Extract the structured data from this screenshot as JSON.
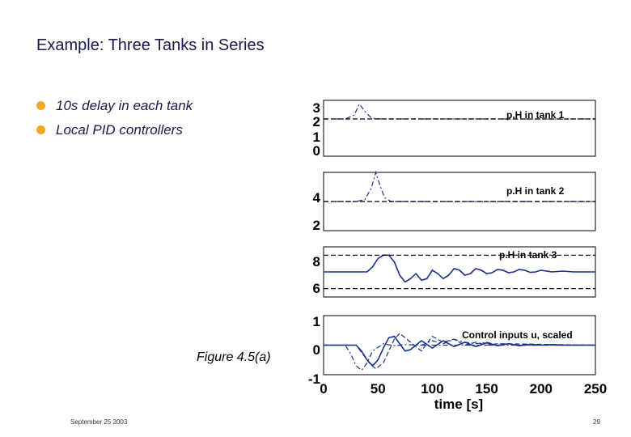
{
  "slide": {
    "title": "Example: Three Tanks in Series",
    "bullets": [
      "10s delay in each tank",
      "Local PID  controllers"
    ],
    "figure_caption": "Figure 4.5(a)",
    "footer_date": "September 25 2003",
    "page_number": "29"
  },
  "colors": {
    "title_text": "#1a1a4a",
    "bullet_icon": "#f5a623",
    "series_solid": "#1a2f8a",
    "series_dashdot": "#1a2f8a",
    "reference_dashed": "#000000"
  },
  "chart_data": [
    {
      "type": "line",
      "title": "p.H in tank 1",
      "ylim": [
        0,
        3
      ],
      "yticks": [
        "3",
        "2",
        "1",
        "0"
      ],
      "xlim": [
        0,
        250
      ],
      "series": [
        {
          "style": "dash-dot",
          "x": [
            0,
            20,
            28,
            33,
            38,
            44,
            52,
            70,
            250
          ],
          "y": [
            2.0,
            2.0,
            2.2,
            2.8,
            2.4,
            2.05,
            2.0,
            2.0,
            2.0
          ]
        },
        {
          "style": "dashed",
          "x": [
            0,
            250
          ],
          "y": [
            2.0,
            2.0
          ]
        }
      ]
    },
    {
      "type": "line",
      "title": "p.H in tank 2",
      "ylim": [
        2,
        5
      ],
      "yticks": [
        "4",
        "2"
      ],
      "xlim": [
        0,
        250
      ],
      "series": [
        {
          "style": "dash-dot",
          "x": [
            0,
            30,
            38,
            44,
            48,
            52,
            56,
            62,
            75,
            250
          ],
          "y": [
            3.5,
            3.5,
            3.6,
            4.2,
            5.0,
            4.3,
            3.7,
            3.5,
            3.5,
            3.5
          ]
        },
        {
          "style": "dashed",
          "x": [
            0,
            250
          ],
          "y": [
            3.5,
            3.5
          ]
        }
      ]
    },
    {
      "type": "line",
      "title": "p.H in tank 3",
      "ylim": [
        5.5,
        8.5
      ],
      "yticks": [
        "8",
        "6"
      ],
      "xlim": [
        0,
        250
      ],
      "series": [
        {
          "style": "solid",
          "x": [
            0,
            40,
            45,
            50,
            55,
            60,
            65,
            70,
            75,
            80,
            85,
            90,
            95,
            100,
            105,
            110,
            115,
            120,
            125,
            130,
            135,
            140,
            145,
            150,
            155,
            160,
            165,
            170,
            175,
            180,
            185,
            190,
            195,
            200,
            210,
            220,
            230,
            250
          ],
          "y": [
            7.0,
            7.0,
            7.3,
            7.8,
            8.0,
            8.0,
            7.6,
            6.8,
            6.4,
            6.6,
            6.9,
            6.5,
            6.6,
            7.1,
            6.9,
            6.6,
            6.8,
            7.2,
            7.1,
            6.8,
            6.9,
            7.2,
            7.1,
            6.9,
            6.95,
            7.15,
            7.1,
            6.95,
            7.0,
            7.15,
            7.1,
            6.97,
            7.0,
            7.1,
            7.0,
            7.05,
            7.0,
            7.0
          ]
        },
        {
          "style": "dashed",
          "x": [
            0,
            250
          ],
          "y": [
            8.0,
            8.0
          ]
        },
        {
          "style": "dashed",
          "x": [
            0,
            250
          ],
          "y": [
            6.0,
            6.0
          ]
        }
      ]
    },
    {
      "type": "line",
      "title": "Control inputs u, scaled",
      "ylim": [
        -1,
        1
      ],
      "yticks": [
        "1",
        "0",
        "-1"
      ],
      "xlim": [
        0,
        250
      ],
      "xticks": [
        0,
        50,
        100,
        150,
        200,
        250
      ],
      "xlabel": "time [s]",
      "series": [
        {
          "style": "dash-dot",
          "x": [
            0,
            20,
            25,
            30,
            35,
            40,
            45,
            55,
            65,
            75,
            90,
            110,
            140,
            250
          ],
          "y": [
            0.0,
            0.0,
            -0.3,
            -0.7,
            -0.85,
            -0.6,
            -0.2,
            0.05,
            -0.02,
            0.02,
            0.0,
            0.0,
            0.0,
            0.0
          ]
        },
        {
          "style": "solid",
          "x": [
            0,
            30,
            35,
            40,
            45,
            50,
            55,
            60,
            65,
            70,
            75,
            80,
            90,
            100,
            110,
            120,
            130,
            140,
            150,
            160,
            170,
            180,
            190,
            200,
            210,
            220,
            230,
            250
          ],
          "y": [
            0.0,
            0.0,
            -0.2,
            -0.5,
            -0.7,
            -0.5,
            -0.1,
            0.25,
            0.3,
            0.05,
            -0.2,
            -0.15,
            0.15,
            -0.1,
            0.15,
            -0.05,
            0.1,
            -0.05,
            0.08,
            -0.02,
            0.05,
            -0.02,
            0.03,
            0.0,
            0.02,
            0.0,
            0.0,
            0.0
          ]
        },
        {
          "style": "dashed",
          "x": [
            0,
            30,
            36,
            42,
            48,
            55,
            60,
            65,
            70,
            80,
            90,
            100,
            110,
            120,
            130,
            140,
            150,
            160,
            250
          ],
          "y": [
            0.0,
            0.0,
            -0.3,
            -0.6,
            -0.8,
            -0.6,
            -0.2,
            0.2,
            0.4,
            0.1,
            -0.2,
            0.3,
            0.1,
            0.2,
            0.0,
            0.1,
            0.0,
            0.05,
            0.0
          ]
        },
        {
          "style": "dash-dot",
          "x": [
            90,
            100,
            110,
            120,
            130,
            140,
            150,
            160,
            170,
            180,
            250
          ],
          "y": [
            0.0,
            0.15,
            0.05,
            0.2,
            0.1,
            0.05,
            0.1,
            0.0,
            0.05,
            0.0,
            0.0
          ]
        }
      ]
    }
  ]
}
